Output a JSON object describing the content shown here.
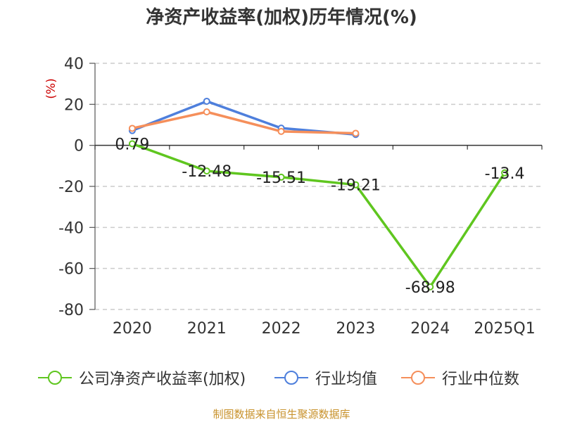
{
  "chart_data": {
    "type": "line",
    "title": "净资产收益率(加权)历年情况(%)",
    "ylabel": "(%)",
    "categories": [
      "2020",
      "2021",
      "2022",
      "2023",
      "2024",
      "2025Q1"
    ],
    "ylim": [
      -80,
      40
    ],
    "yticks": [
      "40",
      "20",
      "0",
      "-20",
      "-40",
      "-60",
      "-80"
    ],
    "grid": true,
    "legend_position": "bottom",
    "series": [
      {
        "name": "公司净资产收益率(加权)",
        "color": "#5fc61f",
        "values": [
          0.79,
          -12.48,
          -15.51,
          -19.21,
          -68.98,
          -13.4
        ],
        "labels": [
          "0.79",
          "-12.48",
          "-15.51",
          "-19.21",
          "-68.98",
          "-13.4"
        ]
      },
      {
        "name": "行业均值",
        "color": "#4e7fdc",
        "values": [
          7.2,
          21.5,
          8.4,
          5.3,
          null,
          null
        ]
      },
      {
        "name": "行业中位数",
        "color": "#f58f5b",
        "values": [
          8.3,
          16.3,
          6.8,
          5.9,
          null,
          null
        ]
      }
    ]
  },
  "source_text": "制图数据来自恒生聚源数据库"
}
